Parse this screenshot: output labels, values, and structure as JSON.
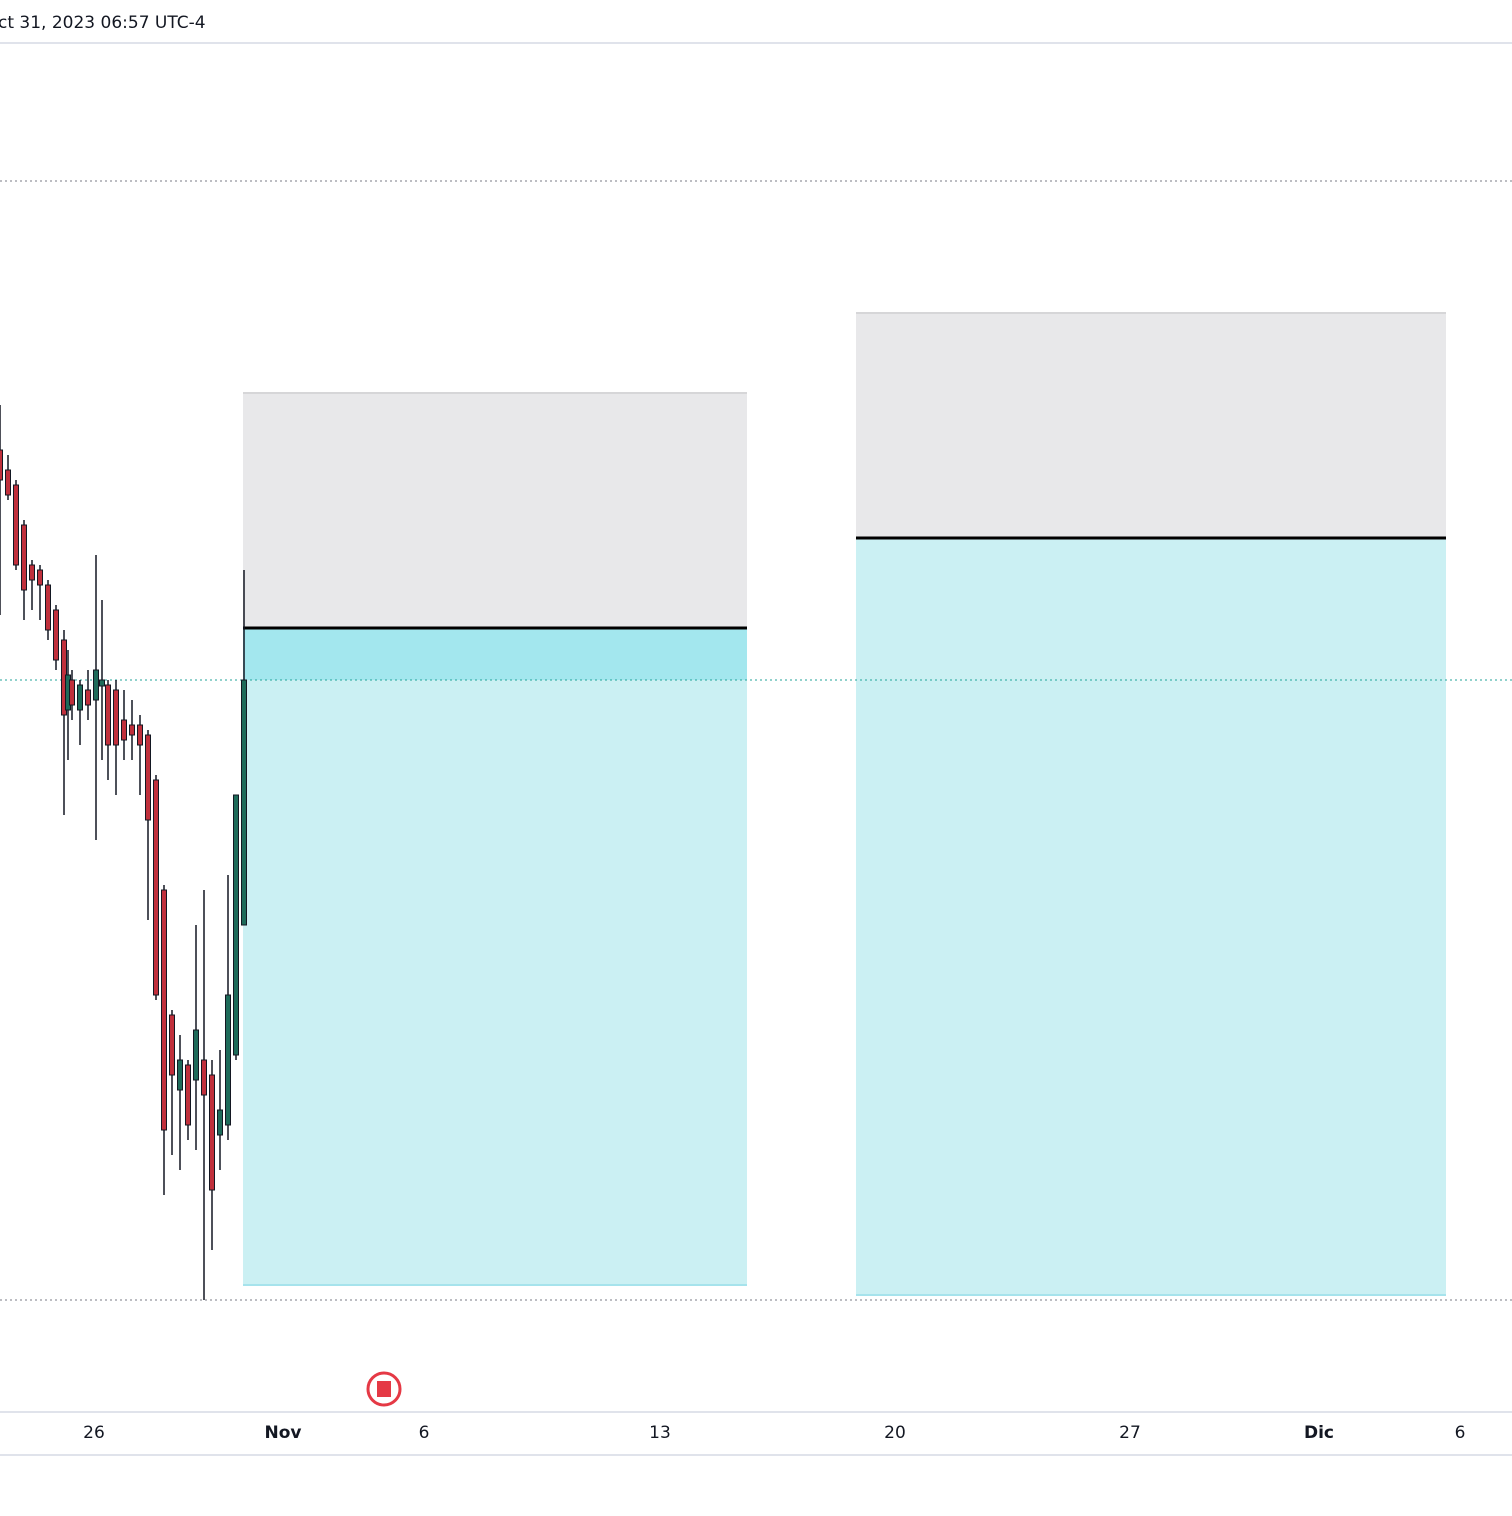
{
  "header": {
    "datetime": "ct 31, 2023 06:57 UTC-4"
  },
  "time_axis": {
    "labels": [
      "26",
      "Nov",
      "6",
      "13",
      "20",
      "27",
      "Dic",
      "6"
    ]
  }
}
